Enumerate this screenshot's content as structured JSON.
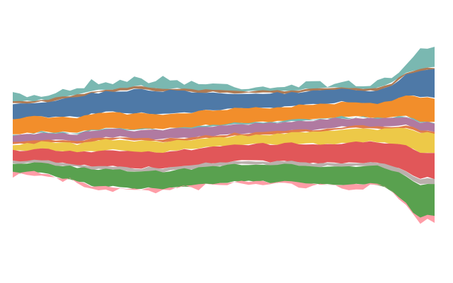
{
  "chart_data": {
    "type": "area",
    "stacking": "streamgraph",
    "offset": "silhouette",
    "title": "",
    "xlabel": "",
    "ylabel": "",
    "axes_visible": false,
    "grid": false,
    "legend": "none",
    "x": [
      0,
      1,
      2,
      3,
      4,
      5,
      6,
      7,
      8,
      9,
      10,
      11,
      12,
      13,
      14,
      15,
      16,
      17,
      18,
      19,
      20,
      21,
      22,
      23,
      24,
      25,
      26,
      27,
      28,
      29,
      30,
      31,
      32,
      33,
      34,
      35,
      36,
      37,
      38,
      39,
      40,
      41,
      42,
      43,
      44,
      45,
      46,
      47,
      48,
      49,
      50,
      51,
      52,
      53,
      54,
      55,
      56,
      57,
      58,
      59
    ],
    "series": [
      {
        "color": "#7ab8b1",
        "values": [
          5,
          5,
          5,
          4,
          4,
          5,
          6,
          6,
          6,
          7,
          7,
          8,
          8,
          7,
          7,
          7,
          8,
          7,
          6,
          7,
          8,
          9,
          7,
          7,
          6,
          7,
          6,
          5,
          5,
          5,
          5,
          4,
          4,
          4,
          4,
          4,
          5,
          4,
          4,
          4,
          4,
          4,
          4,
          4,
          4,
          4,
          4,
          4,
          4,
          4,
          4,
          4,
          4,
          5,
          6,
          8,
          14,
          17,
          14,
          15
        ]
      },
      {
        "color": "#ae7b55",
        "values": [
          2,
          2,
          2,
          2,
          2,
          2,
          2,
          2,
          2,
          2,
          2,
          2,
          2,
          2,
          2,
          2,
          2,
          2,
          2,
          2,
          2,
          2,
          2,
          2,
          2,
          2,
          2,
          2,
          2,
          2,
          2,
          2,
          2,
          2,
          2,
          2,
          2,
          2,
          2,
          2,
          2,
          2,
          2,
          2,
          2,
          2,
          2,
          2,
          2,
          2,
          2,
          2,
          2,
          2,
          2,
          2,
          2,
          2,
          2,
          2
        ]
      },
      {
        "color": "#4e79a7",
        "values": [
          14,
          14,
          12,
          12,
          12,
          13,
          15,
          15,
          16,
          18,
          18,
          18,
          18,
          18,
          18,
          19,
          20,
          21,
          21,
          20,
          20,
          20,
          20,
          19,
          19,
          18,
          17,
          16,
          16,
          15,
          14,
          13,
          13,
          13,
          12,
          13,
          13,
          13,
          12,
          12,
          11,
          12,
          12,
          12,
          12,
          12,
          11,
          11,
          11,
          11,
          11,
          12,
          13,
          14,
          16,
          18,
          20,
          23,
          24,
          25
        ]
      },
      {
        "color": "#f28e2b",
        "values": [
          13,
          13,
          14,
          14,
          14,
          13,
          13,
          14,
          14,
          13,
          13,
          14,
          14,
          14,
          14,
          13,
          13,
          14,
          14,
          13,
          13,
          13,
          13,
          13,
          13,
          13,
          13,
          13,
          13,
          13,
          13,
          13,
          13,
          13,
          13,
          12,
          12,
          12,
          12,
          12,
          13,
          13,
          13,
          13,
          12,
          12,
          13,
          13,
          12,
          12,
          12,
          12,
          13,
          14,
          16,
          18,
          20,
          21,
          21,
          21
        ]
      },
      {
        "color": "#76b7b2",
        "values": [
          1,
          1,
          1,
          1,
          1,
          1,
          1,
          1,
          1,
          1,
          1,
          1,
          1,
          1,
          1,
          1,
          1,
          1,
          1,
          1,
          1,
          1,
          1,
          1,
          1,
          1,
          1,
          1,
          1,
          1,
          1,
          1,
          1,
          1,
          1,
          1,
          1,
          1,
          1,
          1,
          1,
          1,
          1,
          1,
          1,
          1,
          1,
          1,
          1,
          1,
          1,
          1,
          1,
          1,
          1,
          1,
          1,
          1,
          1,
          1
        ]
      },
      {
        "color": "#b07aa1",
        "values": [
          6,
          6,
          6,
          6,
          6,
          6,
          6,
          6,
          6,
          7,
          7,
          7,
          7,
          7,
          7,
          7,
          7,
          7,
          8,
          8,
          8,
          8,
          8,
          8,
          8,
          8,
          8,
          8,
          8,
          8,
          8,
          8,
          8,
          8,
          8,
          8,
          8,
          8,
          8,
          8,
          8,
          8,
          8,
          8,
          8,
          8,
          8,
          7,
          7,
          7,
          7,
          7,
          7,
          7,
          7,
          7,
          7,
          7,
          7,
          7
        ]
      },
      {
        "color": "#e17c4a",
        "values": [
          2,
          2,
          2,
          2,
          2,
          2,
          2,
          2,
          2,
          2,
          2,
          2,
          2,
          2,
          2,
          2,
          2,
          2,
          2,
          2,
          2,
          2,
          2,
          2,
          2,
          2,
          2,
          2,
          2,
          2,
          2,
          2,
          2,
          2,
          2,
          2,
          2,
          2,
          2,
          2,
          2,
          2,
          2,
          2,
          2,
          2,
          2,
          2,
          2,
          2,
          2,
          2,
          2,
          2,
          2,
          2,
          2,
          2,
          2,
          2
        ]
      },
      {
        "color": "#edc948",
        "values": [
          5,
          6,
          6,
          6,
          6,
          6,
          7,
          7,
          7,
          7,
          8,
          9,
          9,
          9,
          9,
          10,
          10,
          10,
          10,
          9,
          9,
          9,
          9,
          9,
          8,
          8,
          8,
          8,
          8,
          8,
          8,
          8,
          8,
          8,
          8,
          8,
          9,
          9,
          9,
          9,
          10,
          10,
          10,
          11,
          11,
          12,
          12,
          12,
          12,
          12,
          11,
          11,
          12,
          13,
          14,
          16,
          17,
          17,
          17,
          17
        ]
      },
      {
        "color": "#e15759",
        "values": [
          9,
          9,
          9,
          9,
          10,
          10,
          11,
          11,
          11,
          11,
          12,
          13,
          13,
          14,
          14,
          14,
          14,
          14,
          14,
          14,
          14,
          14,
          14,
          14,
          14,
          14,
          14,
          14,
          14,
          14,
          14,
          14,
          14,
          14,
          15,
          15,
          15,
          15,
          15,
          16,
          16,
          17,
          17,
          17,
          17,
          17,
          18,
          18,
          18,
          18,
          18,
          18,
          19,
          20,
          21,
          22,
          23,
          23,
          22,
          22
        ]
      },
      {
        "color": "#bab0ac",
        "values": [
          2,
          2,
          2,
          2,
          2,
          2,
          2,
          2,
          2,
          2,
          2,
          3,
          3,
          3,
          3,
          3,
          3,
          3,
          3,
          3,
          3,
          3,
          3,
          3,
          3,
          3,
          3,
          3,
          3,
          3,
          3,
          3,
          3,
          3,
          3,
          3,
          3,
          3,
          3,
          3,
          3,
          3,
          3,
          3,
          3,
          3,
          3,
          3,
          3,
          3,
          3,
          3,
          3,
          3,
          4,
          4,
          5,
          5,
          5,
          5
        ]
      },
      {
        "color": "#59a14f",
        "values": [
          8,
          8,
          8,
          8,
          9,
          9,
          10,
          11,
          11,
          12,
          13,
          14,
          15,
          15,
          15,
          15,
          15,
          15,
          15,
          15,
          15,
          15,
          15,
          15,
          15,
          15,
          15,
          15,
          15,
          15,
          15,
          15,
          15,
          15,
          15,
          15,
          15,
          15,
          15,
          15,
          15,
          15,
          15,
          15,
          16,
          16,
          16,
          16,
          16,
          16,
          16,
          16,
          17,
          18,
          21,
          24,
          27,
          29,
          28,
          28
        ]
      },
      {
        "color": "#ff9da7",
        "values": [
          2,
          2,
          2,
          2,
          2,
          2,
          2,
          2,
          2,
          2,
          2,
          2,
          2,
          2,
          2,
          2,
          2,
          2,
          2,
          2,
          2,
          2,
          2,
          2,
          2,
          2,
          2,
          2,
          2,
          2,
          2,
          2,
          2,
          2,
          2,
          2,
          2,
          2,
          2,
          2,
          2,
          2,
          2,
          2,
          2,
          2,
          2,
          2,
          2,
          2,
          2,
          2,
          2,
          2,
          2,
          3,
          3,
          3,
          3,
          3
        ]
      }
    ]
  }
}
